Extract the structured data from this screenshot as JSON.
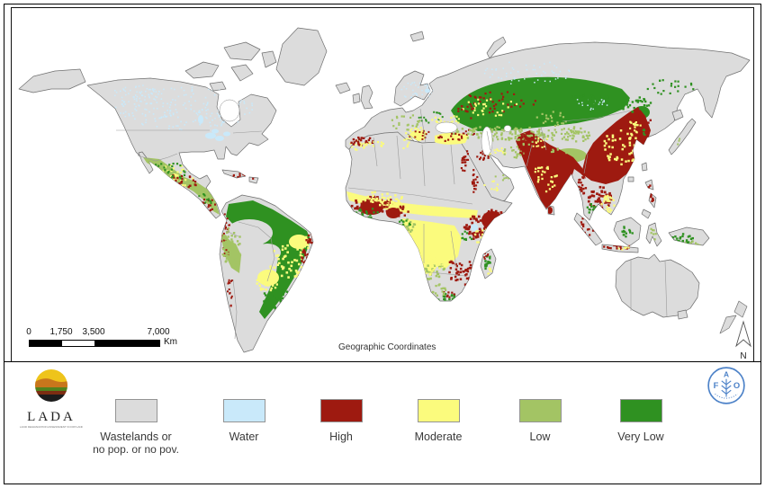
{
  "map": {
    "projection_label": "Geographic Coordinates",
    "north_label": "N",
    "scale_bar": {
      "ticks": [
        "0",
        "1,750",
        "3,500",
        "7,000"
      ],
      "unit": "Km"
    }
  },
  "palette": {
    "wasteland": "#dcdcdc",
    "water": "#c9e9fa",
    "high": "#9e1a10",
    "moderate": "#fbfb7d",
    "low": "#a3c464",
    "very_low": "#2f9121",
    "ocean": "#ffffff",
    "fao_blue": "#4d82c8",
    "lada_yellow": "#eec41b",
    "lada_orange": "#c8761c",
    "lada_green": "#51821d",
    "lada_red": "#7c2d12",
    "lada_black": "#1c1c1c"
  },
  "legend": {
    "items": [
      {
        "key": "wasteland",
        "lines": [
          "Wastelands or",
          "no pop. or no pov."
        ]
      },
      {
        "key": "water",
        "lines": [
          "Water"
        ]
      },
      {
        "key": "high",
        "lines": [
          "High"
        ]
      },
      {
        "key": "moderate",
        "lines": [
          "Moderate"
        ]
      },
      {
        "key": "low",
        "lines": [
          "Low"
        ]
      },
      {
        "key": "very_low",
        "lines": [
          "Very Low"
        ]
      }
    ]
  },
  "logos": {
    "lada": {
      "acronym": "LADA",
      "tagline": "LAND DEGRADATION ASSESSMENT IN DRYLANDS"
    },
    "fao": {
      "letters": [
        "F",
        "A",
        "O"
      ]
    }
  }
}
